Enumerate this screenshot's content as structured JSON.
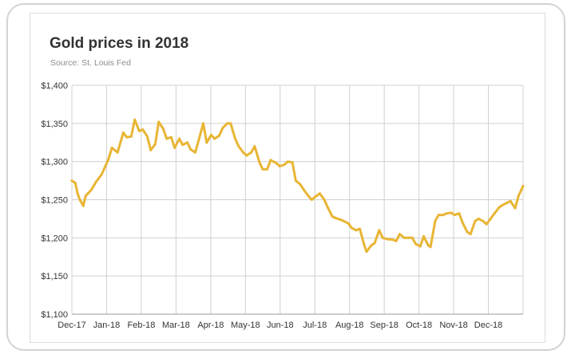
{
  "chart_data": {
    "type": "line",
    "title": "Gold prices in 2018",
    "subtitle": "Source: St. Louis Fed",
    "xlabel": "",
    "ylabel": "",
    "ylim": [
      1100,
      1400
    ],
    "yticks": [
      1100,
      1150,
      1200,
      1250,
      1300,
      1350,
      1400
    ],
    "ytick_labels": [
      "$1,100",
      "$1,150",
      "$1,200",
      "$1,250",
      "$1,300",
      "$1,350",
      "$1,400"
    ],
    "xticks": [
      "Dec-17",
      "Jan-18",
      "Feb-18",
      "Mar-18",
      "Apr-18",
      "May-18",
      "Jun-18",
      "Jul-18",
      "Aug-18",
      "Sep-18",
      "Oct-18",
      "Nov-18",
      "Dec-18"
    ],
    "grid": true,
    "line_color": "#e8b534",
    "series": [
      {
        "x": [
          "2017-12-01",
          "2017-12-04",
          "2017-12-06",
          "2017-12-08",
          "2017-12-11",
          "2017-12-13",
          "2017-12-15",
          "2017-12-18",
          "2017-12-20",
          "2017-12-22",
          "2017-12-27",
          "2018-01-02",
          "2018-01-05",
          "2018-01-10",
          "2018-01-15",
          "2018-01-18",
          "2018-01-22",
          "2018-01-25",
          "2018-01-29",
          "2018-02-01",
          "2018-02-05",
          "2018-02-08",
          "2018-02-12",
          "2018-02-15",
          "2018-02-19",
          "2018-02-22",
          "2018-02-26",
          "2018-03-01",
          "2018-03-05",
          "2018-03-08",
          "2018-03-12",
          "2018-03-15",
          "2018-03-19",
          "2018-03-22",
          "2018-03-26",
          "2018-03-29",
          "2018-04-02",
          "2018-04-05",
          "2018-04-09",
          "2018-04-12",
          "2018-04-16",
          "2018-04-19",
          "2018-04-23",
          "2018-04-26",
          "2018-04-30",
          "2018-05-03",
          "2018-05-07",
          "2018-05-10",
          "2018-05-14",
          "2018-05-17",
          "2018-05-21",
          "2018-05-24",
          "2018-05-29",
          "2018-06-01",
          "2018-06-05",
          "2018-06-08",
          "2018-06-12",
          "2018-06-15",
          "2018-06-19",
          "2018-06-22",
          "2018-06-26",
          "2018-06-29",
          "2018-07-03",
          "2018-07-06",
          "2018-07-10",
          "2018-07-13",
          "2018-07-17",
          "2018-07-20",
          "2018-07-24",
          "2018-07-27",
          "2018-07-31",
          "2018-08-03",
          "2018-08-07",
          "2018-08-10",
          "2018-08-14",
          "2018-08-16",
          "2018-08-20",
          "2018-08-23",
          "2018-08-27",
          "2018-08-30",
          "2018-09-04",
          "2018-09-07",
          "2018-09-11",
          "2018-09-14",
          "2018-09-18",
          "2018-09-21",
          "2018-09-25",
          "2018-09-28",
          "2018-10-02",
          "2018-10-05",
          "2018-10-09",
          "2018-10-11",
          "2018-10-15",
          "2018-10-18",
          "2018-10-22",
          "2018-10-25",
          "2018-10-29",
          "2018-11-01",
          "2018-11-05",
          "2018-11-08",
          "2018-11-12",
          "2018-11-15",
          "2018-11-19",
          "2018-11-22",
          "2018-11-26",
          "2018-11-29",
          "2018-12-03",
          "2018-12-06",
          "2018-12-10",
          "2018-12-13",
          "2018-12-17",
          "2018-12-20",
          "2018-12-24",
          "2018-12-27",
          "2018-12-31"
        ],
        "values": [
          1275,
          1272,
          1258,
          1250,
          1242,
          1255,
          1258,
          1263,
          1268,
          1273,
          1283,
          1303,
          1318,
          1312,
          1338,
          1332,
          1333,
          1355,
          1340,
          1342,
          1333,
          1315,
          1323,
          1352,
          1343,
          1330,
          1332,
          1318,
          1330,
          1322,
          1325,
          1316,
          1312,
          1328,
          1350,
          1325,
          1335,
          1330,
          1334,
          1344,
          1350,
          1350,
          1330,
          1320,
          1312,
          1308,
          1312,
          1320,
          1300,
          1290,
          1290,
          1302,
          1298,
          1294,
          1296,
          1300,
          1299,
          1275,
          1270,
          1263,
          1255,
          1250,
          1255,
          1258,
          1250,
          1240,
          1228,
          1226,
          1224,
          1222,
          1219,
          1213,
          1210,
          1212,
          1190,
          1182,
          1190,
          1193,
          1210,
          1200,
          1198,
          1198,
          1196,
          1205,
          1200,
          1200,
          1200,
          1192,
          1189,
          1202,
          1190,
          1188,
          1222,
          1230,
          1230,
          1232,
          1233,
          1230,
          1232,
          1220,
          1208,
          1205,
          1222,
          1225,
          1222,
          1218,
          1226,
          1232,
          1240,
          1243,
          1246,
          1248,
          1239,
          1255,
          1268
        ]
      }
    ]
  }
}
